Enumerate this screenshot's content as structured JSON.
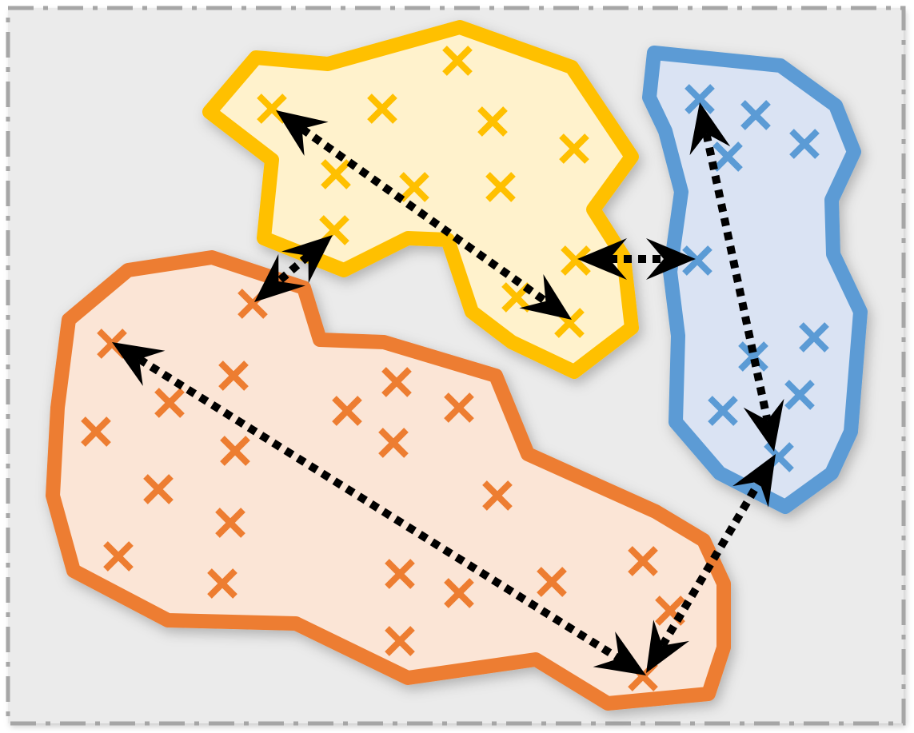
{
  "colors": {
    "background": "#ebebeb",
    "frame": "#a6a6a6",
    "arrow": "#000000"
  },
  "clusters": [
    {
      "id": "yellow",
      "stroke": "#ffc000",
      "fill": "#fff2cc",
      "marker": "x"
    },
    {
      "id": "blue",
      "stroke": "#5b9bd5",
      "fill": "#dae3f3",
      "marker": "x"
    },
    {
      "id": "orange",
      "stroke": "#ed7d31",
      "fill": "#fbe5d6",
      "marker": "x"
    }
  ],
  "arrows": [
    {
      "name": "yellow-diameter-arrow",
      "from": "yellow",
      "to": "yellow"
    },
    {
      "name": "blue-diameter-arrow",
      "from": "blue",
      "to": "blue"
    },
    {
      "name": "orange-diameter-arrow",
      "from": "orange",
      "to": "orange"
    },
    {
      "name": "yellow-orange-gap-arrow",
      "from": "yellow",
      "to": "orange"
    },
    {
      "name": "yellow-blue-gap-arrow",
      "from": "yellow",
      "to": "blue"
    },
    {
      "name": "orange-blue-gap-arrow",
      "from": "orange",
      "to": "blue"
    }
  ]
}
